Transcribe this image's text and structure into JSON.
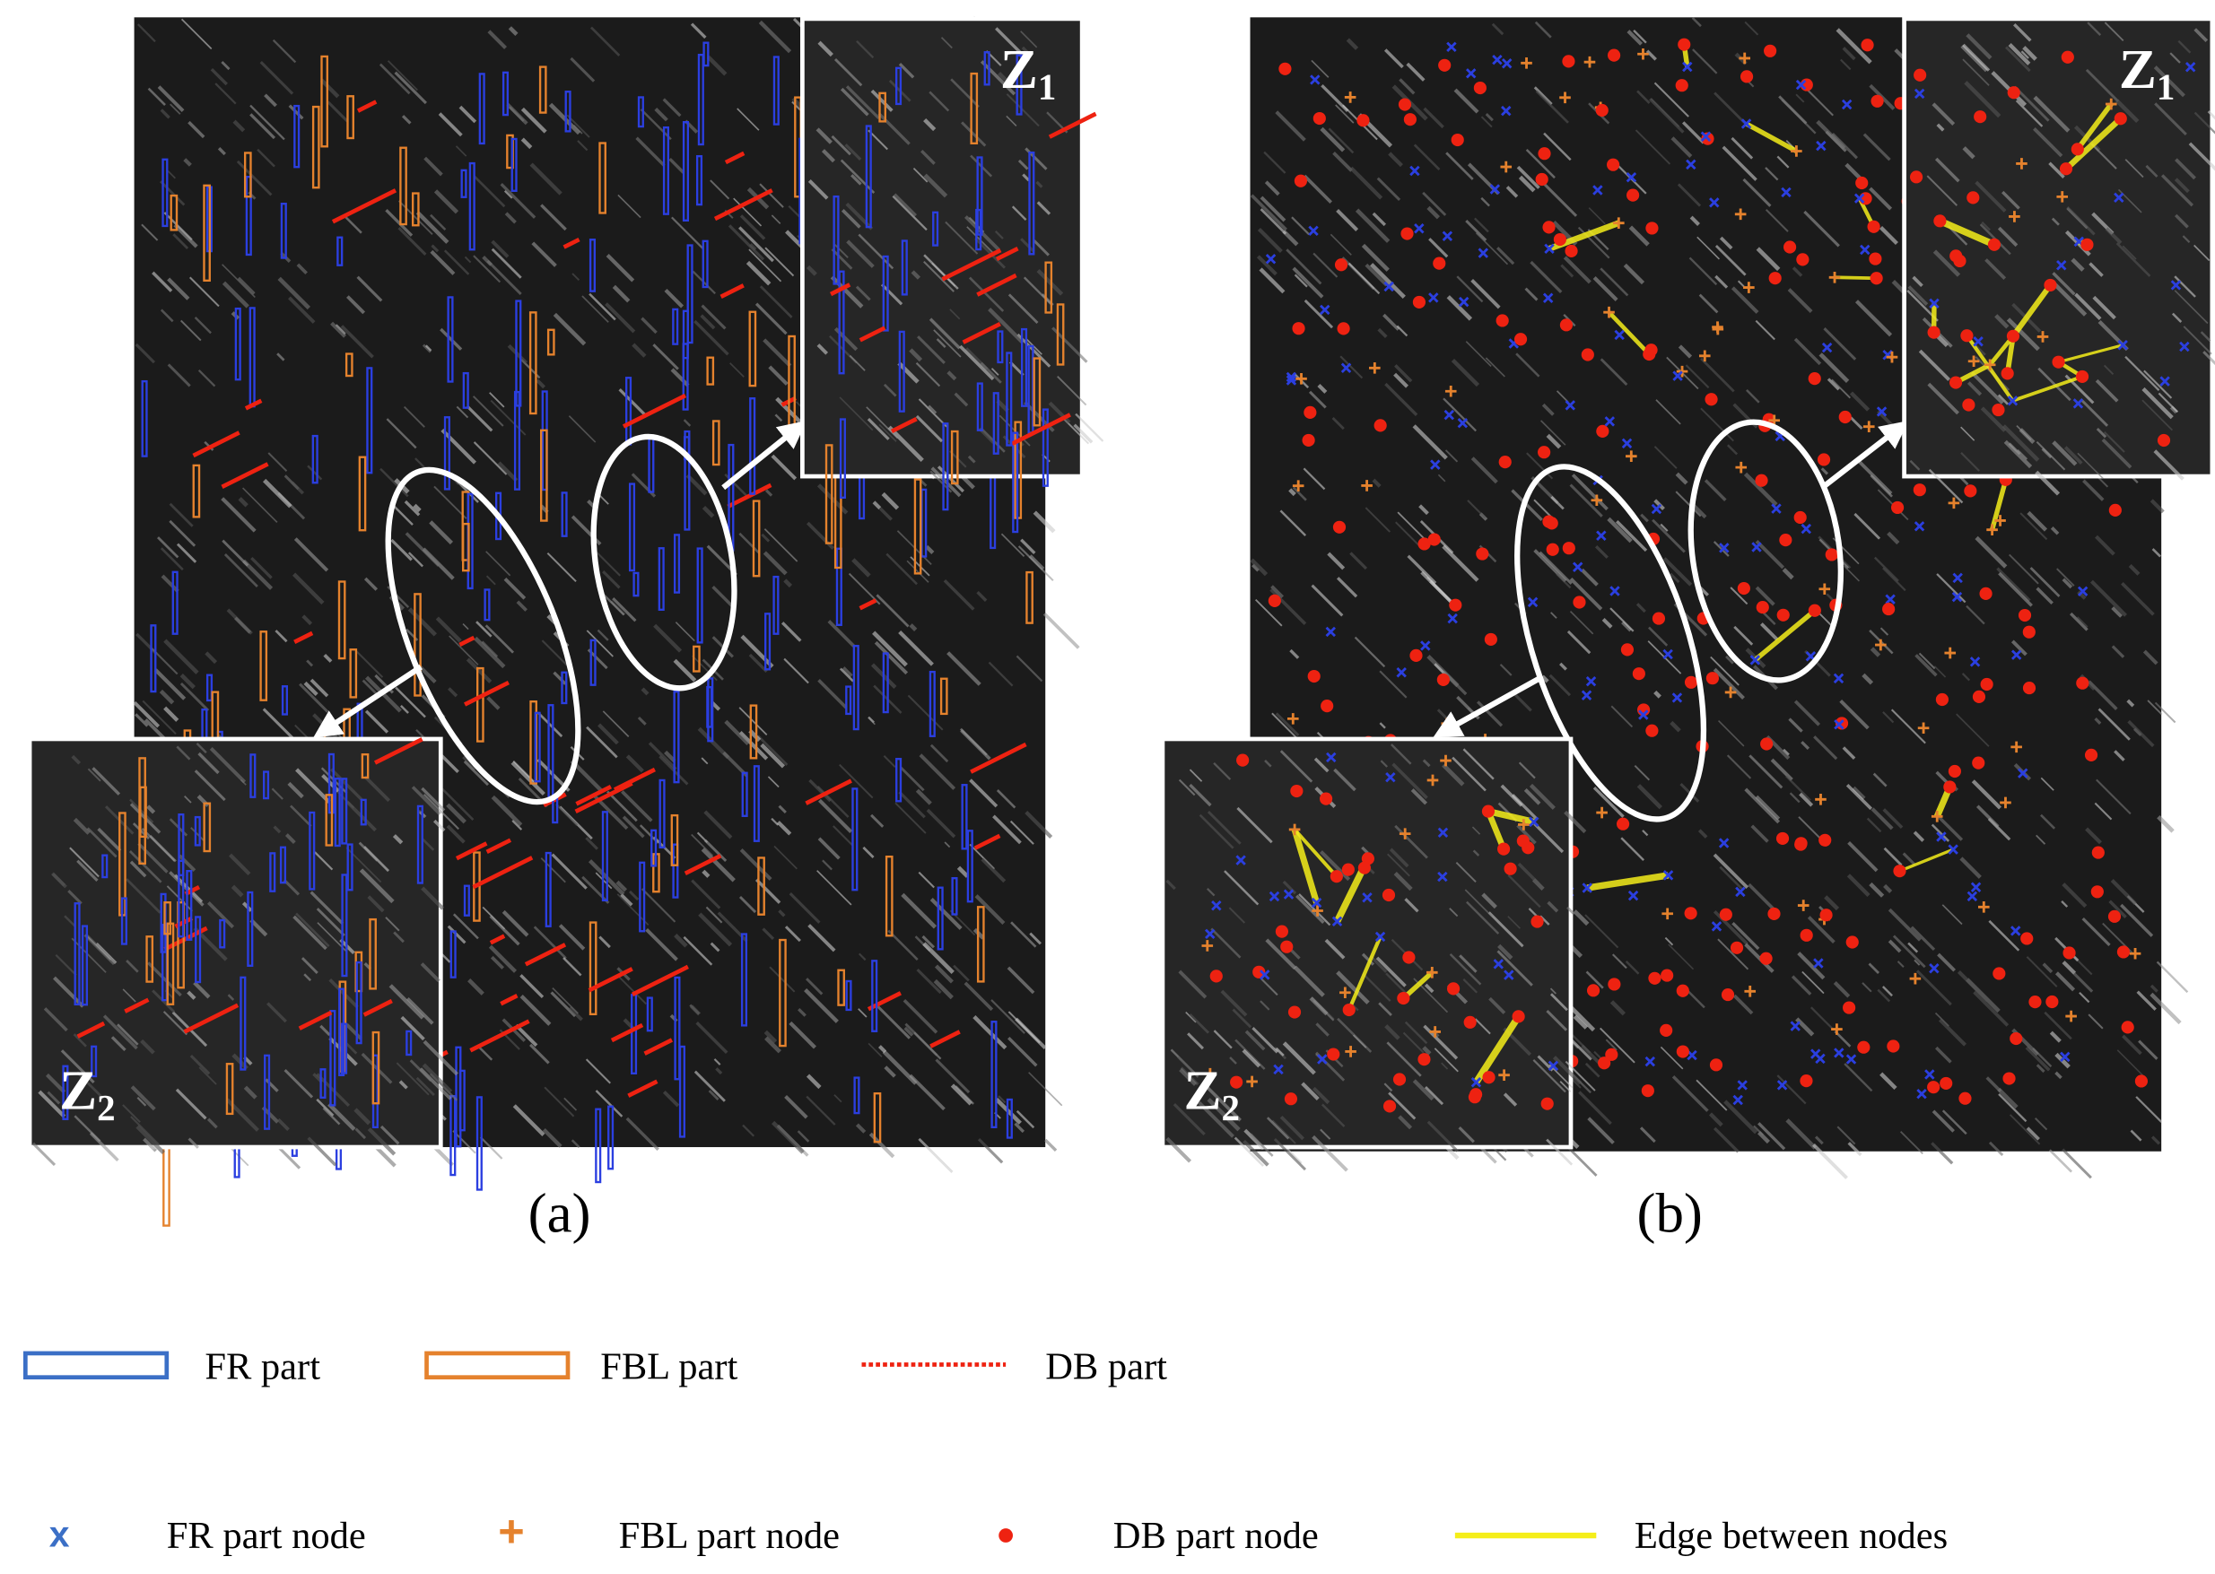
{
  "panels": [
    {
      "label": "(a)",
      "insets": [
        {
          "letter": "Z",
          "subscript": "1"
        },
        {
          "letter": "Z",
          "subscript": "2"
        }
      ]
    },
    {
      "label": "(b)",
      "insets": [
        {
          "letter": "Z",
          "subscript": "1"
        },
        {
          "letter": "Z",
          "subscript": "2"
        }
      ]
    }
  ],
  "legend": {
    "parts": [
      {
        "label": "FR part"
      },
      {
        "label": "FBL part"
      },
      {
        "label": "DB part"
      }
    ],
    "nodes": [
      {
        "symbol": "x",
        "label": "FR part node"
      },
      {
        "symbol": "+",
        "label": "FBL part node"
      },
      {
        "label": "DB part node"
      },
      {
        "label": "Edge between nodes"
      }
    ]
  }
}
